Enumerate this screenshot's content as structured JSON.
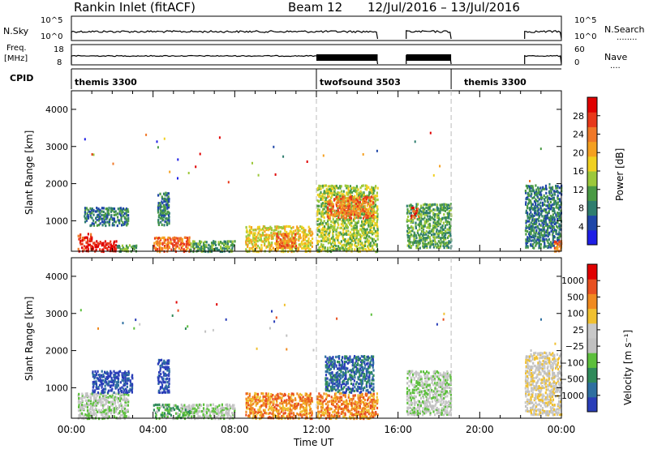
{
  "header": {
    "station": "Rankin Inlet (fitACF)",
    "beam": "Beam 12",
    "dates": "12/Jul/2016 – 13/Jul/2016"
  },
  "status_panels": {
    "nsky_label": "N.Sky",
    "nsky_ticks": [
      "10^5",
      "10^0"
    ],
    "nsearch_label": "N.Search",
    "nsearch_ticks": [
      "10^5",
      "10^0"
    ],
    "freq_label": "Freq.",
    "freq_unit": "[MHz]",
    "freq_ticks": [
      "18",
      "8"
    ],
    "nave_label": "Nave",
    "nave_ticks": [
      "60",
      "0"
    ],
    "cpid_label": "CPID",
    "cpid_segments": [
      {
        "label": "themis 3300",
        "start": 0,
        "end": 12
      },
      {
        "label": "twofsound 3503",
        "start": 12,
        "end": 18.6
      },
      {
        "label": "themis 3300",
        "start": 18.6,
        "end": 24
      }
    ],
    "data_coverage_hours": [
      [
        0,
        15
      ],
      [
        16.4,
        18.6
      ],
      [
        22.2,
        24
      ]
    ]
  },
  "chart_data": [
    {
      "type": "heatmap",
      "name": "power",
      "ylabel": "Slant Range [km]",
      "xlabel": "Time UT",
      "xlim": [
        0,
        24
      ],
      "ylim": [
        180,
        4500
      ],
      "x_ticks": [
        "00:00",
        "04:00",
        "08:00",
        "12:00",
        "16:00",
        "20:00",
        "00:00"
      ],
      "y_ticks": [
        1000,
        2000,
        3000,
        4000
      ],
      "colorbar": {
        "label": "Power [dB]",
        "ticks": [
          "4",
          "8",
          "12",
          "16",
          "20",
          "24",
          "28"
        ],
        "colors": [
          "#1e1ee6",
          "#1e46a8",
          "#2e7d6e",
          "#4a9a44",
          "#9cc83a",
          "#f0d020",
          "#f5a020",
          "#f07828",
          "#e8381a",
          "#e00000"
        ]
      },
      "regions": [
        {
          "t0": 0.3,
          "t1": 1.0,
          "r0": 200,
          "r1": 700,
          "level": 8
        },
        {
          "t0": 1.0,
          "t1": 2.2,
          "r0": 200,
          "r1": 500,
          "level": 9
        },
        {
          "t0": 0.6,
          "t1": 2.8,
          "r0": 900,
          "r1": 1400,
          "level": 2
        },
        {
          "t0": 2.2,
          "t1": 3.2,
          "r0": 200,
          "r1": 400,
          "level": 3
        },
        {
          "t0": 4.0,
          "t1": 5.8,
          "r0": 200,
          "r1": 600,
          "level": 7
        },
        {
          "t0": 4.2,
          "t1": 4.8,
          "r0": 900,
          "r1": 1800,
          "level": 2
        },
        {
          "t0": 5.8,
          "t1": 8.0,
          "r0": 200,
          "r1": 500,
          "level": 3
        },
        {
          "t0": 8.5,
          "t1": 11.8,
          "r0": 200,
          "r1": 900,
          "level": 5
        },
        {
          "t0": 10.0,
          "t1": 11.0,
          "r0": 300,
          "r1": 700,
          "level": 7
        },
        {
          "t0": 12.0,
          "t1": 15.0,
          "r0": 200,
          "r1": 2000,
          "level": 4
        },
        {
          "t0": 12.5,
          "t1": 14.8,
          "r0": 1100,
          "r1": 1700,
          "level": 7
        },
        {
          "t0": 16.4,
          "t1": 18.6,
          "r0": 300,
          "r1": 1500,
          "level": 3
        },
        {
          "t0": 16.6,
          "t1": 17.0,
          "r0": 1100,
          "r1": 1400,
          "level": 8
        },
        {
          "t0": 22.2,
          "t1": 24.0,
          "r0": 300,
          "r1": 2000,
          "level": 2
        },
        {
          "t0": 23.6,
          "t1": 24.0,
          "r0": 200,
          "r1": 500,
          "level": 7
        }
      ]
    },
    {
      "type": "heatmap",
      "name": "velocity",
      "ylabel": "Slant Range [km]",
      "xlabel": "Time UT",
      "xlim": [
        0,
        24
      ],
      "ylim": [
        180,
        4500
      ],
      "x_ticks": [
        "00:00",
        "04:00",
        "08:00",
        "12:00",
        "16:00",
        "20:00",
        "00:00"
      ],
      "y_ticks": [
        1000,
        2000,
        3000,
        4000
      ],
      "colorbar": {
        "label": "Velocity [m s⁻¹]",
        "ticks": [
          "1000",
          "500",
          "100",
          "25",
          "−25",
          "−100",
          "−500",
          "−1000"
        ],
        "colors": [
          "#2a3eb8",
          "#2e6fa0",
          "#2f8a5a",
          "#5cbf3c",
          "#c0c0c0",
          "#c8c8c8",
          "#f0c030",
          "#f08a20",
          "#e85020",
          "#e00000"
        ]
      },
      "regions": [
        {
          "t0": 0.3,
          "t1": 2.8,
          "r0": 200,
          "r1": 900,
          "level": 4
        },
        {
          "t0": 1.0,
          "t1": 3.0,
          "r0": 900,
          "r1": 1500,
          "level": 0
        },
        {
          "t0": 4.0,
          "t1": 5.8,
          "r0": 200,
          "r1": 600,
          "level": 3
        },
        {
          "t0": 4.2,
          "t1": 4.8,
          "r0": 900,
          "r1": 1800,
          "level": 0
        },
        {
          "t0": 5.8,
          "t1": 8.0,
          "r0": 200,
          "r1": 600,
          "level": 4
        },
        {
          "t0": 8.5,
          "t1": 11.8,
          "r0": 200,
          "r1": 900,
          "level": 7
        },
        {
          "t0": 12.0,
          "t1": 15.0,
          "r0": 200,
          "r1": 900,
          "level": 7
        },
        {
          "t0": 12.4,
          "t1": 14.8,
          "r0": 900,
          "r1": 1900,
          "level": 1
        },
        {
          "t0": 16.4,
          "t1": 18.6,
          "r0": 300,
          "r1": 1500,
          "level": 4
        },
        {
          "t0": 22.2,
          "t1": 24.0,
          "r0": 300,
          "r1": 2000,
          "level": 5
        }
      ]
    }
  ]
}
